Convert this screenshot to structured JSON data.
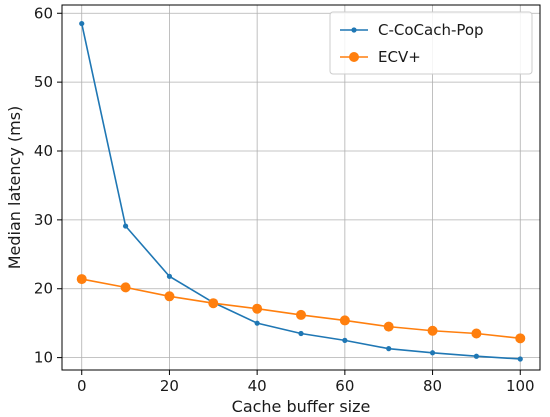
{
  "chart_data": {
    "type": "line",
    "title": "",
    "xlabel": "Cache buffer size",
    "ylabel": "Median latency (ms)",
    "x": [
      0,
      10,
      20,
      30,
      40,
      50,
      60,
      70,
      80,
      90,
      100
    ],
    "xlim": [
      -4.5,
      104.5
    ],
    "ylim": [
      8.2,
      61.2
    ],
    "xticks": [
      0,
      20,
      40,
      60,
      80,
      100
    ],
    "yticks": [
      10,
      20,
      30,
      40,
      50,
      60
    ],
    "grid": true,
    "legend": "top-right",
    "series": [
      {
        "name": "C-CoCach-Pop",
        "color": "#1f77b4",
        "marker": "small-dot",
        "values": [
          58.5,
          29.1,
          21.8,
          18.0,
          15.0,
          13.5,
          12.5,
          11.3,
          10.7,
          10.2,
          9.8
        ]
      },
      {
        "name": "ECV+",
        "color": "#ff7f0e",
        "marker": "large-dot",
        "values": [
          21.4,
          20.2,
          18.9,
          17.9,
          17.1,
          16.2,
          15.4,
          14.5,
          13.9,
          13.5,
          12.8
        ]
      }
    ]
  }
}
